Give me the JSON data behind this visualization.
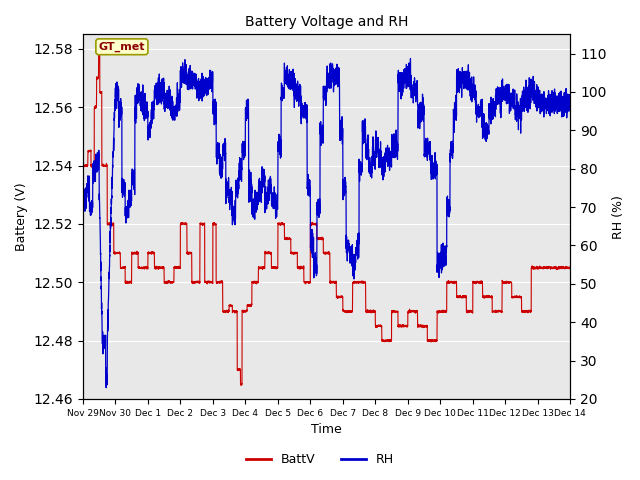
{
  "title": "Battery Voltage and RH",
  "xlabel": "Time",
  "ylabel_left": "Battery (V)",
  "ylabel_right": "RH (%)",
  "ylim_left": [
    12.46,
    12.585
  ],
  "ylim_right": [
    20,
    115
  ],
  "yticks_left": [
    12.46,
    12.48,
    12.5,
    12.52,
    12.54,
    12.56,
    12.58
  ],
  "yticks_right": [
    20,
    30,
    40,
    50,
    60,
    70,
    80,
    90,
    100,
    110
  ],
  "bg_color": "#e8e8e8",
  "legend_label_batt": "BattV",
  "legend_label_rh": "RH",
  "batt_color": "#cc0000",
  "rh_color": "#0000cc",
  "annotation_text": "GT_met",
  "tick_labels": [
    "Nov 29",
    "Nov 30",
    "Dec 1",
    "Dec 2",
    "Dec 3",
    "Dec 4",
    "Dec 5",
    "Dec 6",
    "Dec 7",
    "Dec 8",
    "Dec 9",
    "Dec 10",
    "Dec 11",
    "Dec 12",
    "Dec 13",
    "Dec 14"
  ],
  "figsize": [
    6.4,
    4.8
  ],
  "dpi": 100
}
